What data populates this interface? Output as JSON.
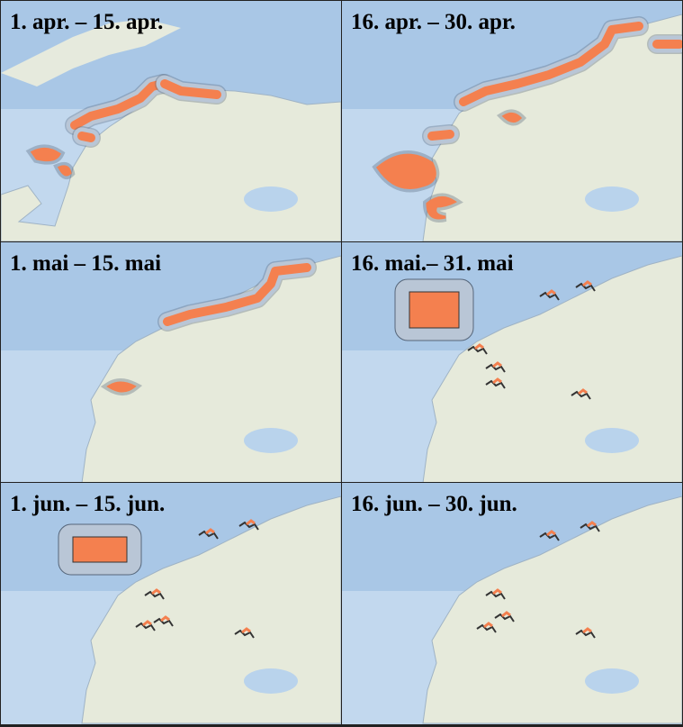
{
  "panels": [
    {
      "label": "1. apr. – 15. apr."
    },
    {
      "label": "16. apr. – 30. apr."
    },
    {
      "label": "1. mai – 15. mai"
    },
    {
      "label": "16. mai.– 31. mai"
    },
    {
      "label": "1. jun. – 15. jun."
    },
    {
      "label": "16. jun. – 30. jun."
    }
  ]
}
